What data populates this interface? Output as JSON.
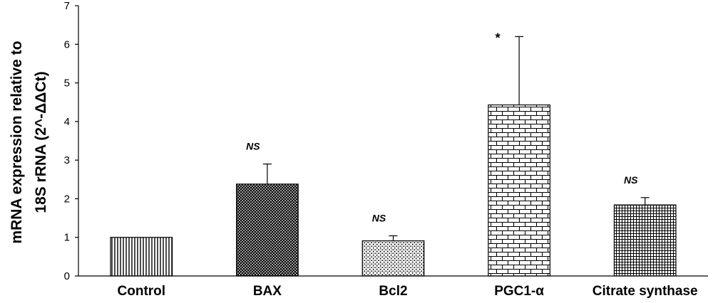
{
  "chart_data": {
    "type": "bar",
    "categories": [
      "Control",
      "BAX",
      "Bcl2",
      "PGC1-α",
      "Citrate synthase"
    ],
    "series": [
      {
        "values": [
          1.0,
          2.38,
          0.91,
          4.43,
          1.84
        ],
        "error_plus": [
          0.0,
          0.52,
          0.13,
          1.77,
          0.19
        ]
      }
    ],
    "annotations": [
      "",
      "NS",
      "NS",
      "*",
      "NS"
    ],
    "patterns": [
      "vertical-lines",
      "cross-hatch-dense",
      "dots",
      "bricks",
      "grid"
    ],
    "ylabel_line1": "mRNA expression relative to",
    "ylabel_line2": "18S rRNA (2^-ΔΔCt)",
    "xlabel": "",
    "ylim": [
      0,
      7
    ],
    "yticks": [
      0,
      1,
      2,
      3,
      4,
      5,
      6,
      7
    ],
    "grid": false,
    "legend": "none"
  }
}
